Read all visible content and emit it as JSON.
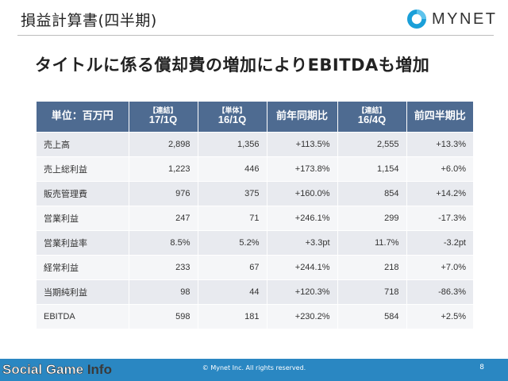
{
  "header": {
    "title": "損益計算書(四半期)"
  },
  "logo": {
    "text": "MYNET"
  },
  "headline": "タイトルに係る償却費の増加によりEBITDAも増加",
  "table": {
    "headers": [
      {
        "tag": "",
        "label": "単位：百万円"
      },
      {
        "tag": "【連結】",
        "label": "17/1Q"
      },
      {
        "tag": "【単体】",
        "label": "16/1Q"
      },
      {
        "tag": "",
        "label": "前年同期比"
      },
      {
        "tag": "【連結】",
        "label": "16/4Q"
      },
      {
        "tag": "",
        "label": "前四半期比"
      }
    ],
    "rows": [
      {
        "label": "売上高",
        "v1": "2,898",
        "v2": "1,356",
        "yoy": "+113.5%",
        "v3": "2,555",
        "qoq": "+13.3%"
      },
      {
        "label": "売上総利益",
        "v1": "1,223",
        "v2": "446",
        "yoy": "+173.8%",
        "v3": "1,154",
        "qoq": "+6.0%"
      },
      {
        "label": "販売管理費",
        "v1": "976",
        "v2": "375",
        "yoy": "+160.0%",
        "v3": "854",
        "qoq": "+14.2%"
      },
      {
        "label": "営業利益",
        "v1": "247",
        "v2": "71",
        "yoy": "+246.1%",
        "v3": "299",
        "qoq": "-17.3%"
      },
      {
        "label": "営業利益率",
        "v1": "8.5%",
        "v2": "5.2%",
        "yoy": "+3.3pt",
        "v3": "11.7%",
        "qoq": "-3.2pt"
      },
      {
        "label": "経常利益",
        "v1": "233",
        "v2": "67",
        "yoy": "+244.1%",
        "v3": "218",
        "qoq": "+7.0%"
      },
      {
        "label": "当期純利益",
        "v1": "98",
        "v2": "44",
        "yoy": "+120.3%",
        "v3": "718",
        "qoq": "-86.3%"
      },
      {
        "label": "EBITDA",
        "v1": "598",
        "v2": "181",
        "yoy": "+230.2%",
        "v3": "584",
        "qoq": "+2.5%"
      }
    ]
  },
  "footer": {
    "brand_part1": "Social",
    "brand_part2": "Game",
    "brand_part3": "Info",
    "copyright": "© Mynet Inc. All rights reserved.",
    "page": "8"
  },
  "colors": {
    "header_fill": "#4e6b91",
    "row_odd": "#e8eaef",
    "row_even": "#f5f6f8",
    "footer": "#2a87c2",
    "logo_blue": "#1a9fd8"
  }
}
